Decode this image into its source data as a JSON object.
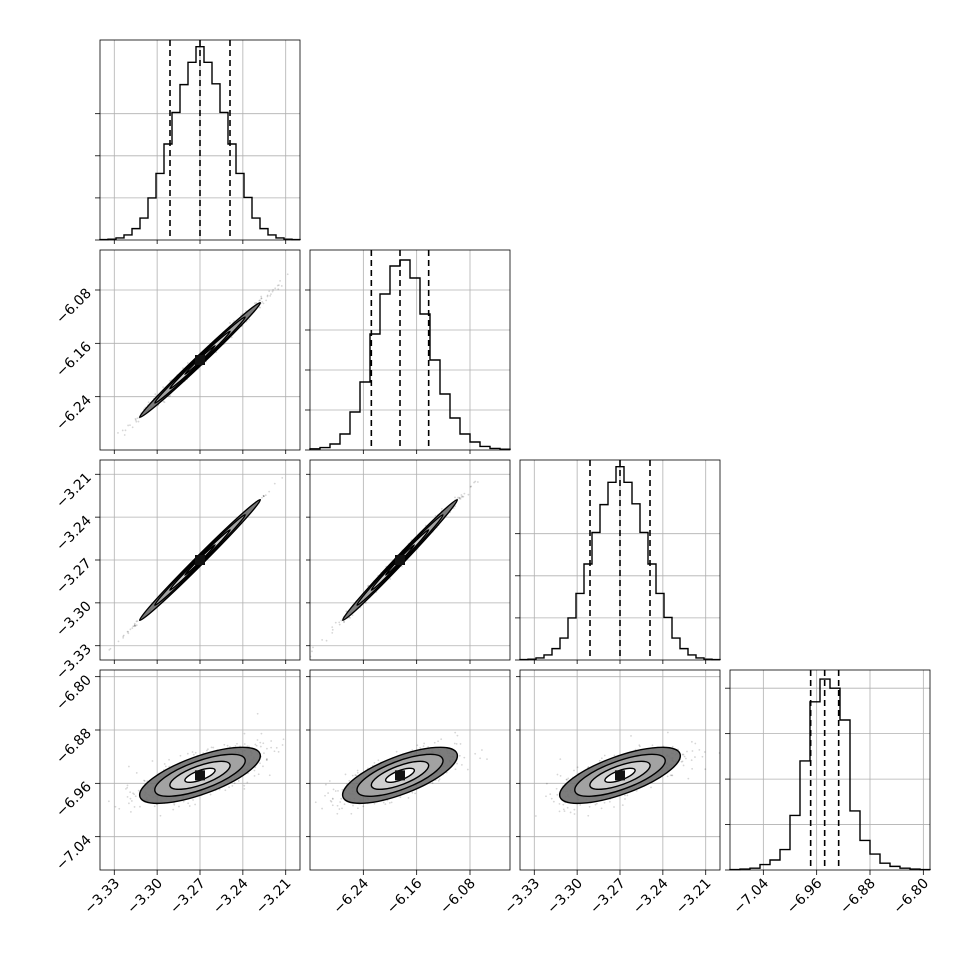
{
  "chart_data": {
    "type": "corner",
    "parameters": [
      {
        "ticks": [
          -3.33,
          -3.3,
          -3.27,
          -3.24,
          -3.21
        ],
        "tick_labels": [
          "−3.33",
          "−3.30",
          "−3.27",
          "−3.24",
          "−3.21"
        ],
        "range": [
          -3.34,
          -3.2
        ],
        "mean": -3.27,
        "sd": 0.0211,
        "quantiles": [
          -3.291,
          -3.27,
          -3.249
        ]
      },
      {
        "ticks": [
          -6.24,
          -6.16,
          -6.08
        ],
        "tick_labels": [
          "−6.24",
          "−6.16",
          "−6.08"
        ],
        "range": [
          -6.32,
          -6.02
        ],
        "mean": -6.185,
        "sd": 0.043,
        "quantiles": [
          -6.228,
          -6.185,
          -6.142
        ]
      },
      {
        "ticks": [
          -3.33,
          -3.3,
          -3.27,
          -3.24,
          -3.21
        ],
        "tick_labels": [
          "−3.33",
          "−3.30",
          "−3.27",
          "−3.24",
          "−3.21"
        ],
        "range": [
          -3.34,
          -3.2
        ],
        "mean": -3.27,
        "sd": 0.0211,
        "quantiles": [
          -3.291,
          -3.27,
          -3.249
        ]
      },
      {
        "ticks": [
          -6.8,
          -6.88,
          -6.96,
          -7.04
        ],
        "tick_labels": [
          "−6.80",
          "−6.88",
          "−6.96",
          "−7.04"
        ],
        "range": [
          -7.09,
          -6.79
        ],
        "mean": -6.948,
        "sd": 0.021,
        "quantiles": [
          -6.969,
          -6.948,
          -6.927
        ]
      }
    ],
    "histograms": [
      {
        "bins": [
          -3.34,
          -3.3344,
          -3.3288,
          -3.3232,
          -3.3176,
          -3.312,
          -3.3064,
          -3.3008,
          -3.2952,
          -3.2896,
          -3.284,
          -3.2784,
          -3.2728,
          -3.2672,
          -3.2616,
          -3.256,
          -3.2504,
          -3.2448,
          -3.2392,
          -3.2336,
          -3.228,
          -3.2224,
          -3.2168,
          -3.2112,
          -3.2056,
          -3.2
        ],
        "counts": [
          1,
          2,
          5,
          12,
          27,
          52,
          100,
          158,
          228,
          303,
          369,
          422,
          459,
          422,
          371,
          303,
          228,
          158,
          101,
          52,
          27,
          12,
          5,
          2,
          1
        ],
        "ylim": [
          0,
          475
        ],
        "yticks": [
          0,
          100,
          200,
          300
        ]
      },
      {
        "bins": [
          -6.32,
          -6.305,
          -6.29,
          -6.275,
          -6.26,
          -6.245,
          -6.23,
          -6.215,
          -6.2,
          -6.185,
          -6.17,
          -6.155,
          -6.14,
          -6.125,
          -6.11,
          -6.095,
          -6.08,
          -6.065,
          -6.05,
          -6.035,
          -6.02
        ],
        "counts": [
          3,
          6,
          15,
          40,
          95,
          170,
          290,
          390,
          460,
          475,
          430,
          340,
          225,
          140,
          80,
          40,
          20,
          9,
          4,
          2
        ],
        "ylim": [
          0,
          500
        ],
        "yticks": [
          0,
          100,
          200,
          300,
          400
        ]
      },
      {
        "bins": [
          -3.34,
          -3.3344,
          -3.3288,
          -3.3232,
          -3.3176,
          -3.312,
          -3.3064,
          -3.3008,
          -3.2952,
          -3.2896,
          -3.284,
          -3.2784,
          -3.2728,
          -3.2672,
          -3.2616,
          -3.256,
          -3.2504,
          -3.2448,
          -3.2392,
          -3.2336,
          -3.228,
          -3.2224,
          -3.2168,
          -3.2112,
          -3.2056,
          -3.2
        ],
        "counts": [
          1,
          2,
          5,
          12,
          27,
          52,
          100,
          158,
          228,
          303,
          369,
          422,
          459,
          422,
          371,
          303,
          228,
          158,
          101,
          52,
          27,
          12,
          5,
          2,
          1
        ],
        "ylim": [
          0,
          475
        ],
        "yticks": [
          0,
          100,
          200,
          300
        ]
      },
      {
        "bins": [
          -7.09,
          -7.075,
          -7.06,
          -7.045,
          -7.03,
          -7.015,
          -7.0,
          -6.985,
          -6.97,
          -6.955,
          -6.94,
          -6.925,
          -6.91,
          -6.895,
          -6.88,
          -6.865,
          -6.85,
          -6.835,
          -6.82,
          -6.805,
          -6.79
        ],
        "counts": [
          1,
          2,
          4,
          12,
          22,
          45,
          120,
          240,
          370,
          420,
          400,
          330,
          130,
          65,
          35,
          15,
          8,
          4,
          2,
          1
        ],
        "ylim": [
          0,
          440
        ],
        "yticks": [
          0,
          100,
          200,
          300,
          400
        ]
      }
    ],
    "pairs": [
      {
        "row": 1,
        "col": 0,
        "corr": 0.995
      },
      {
        "row": 2,
        "col": 0,
        "corr": 0.9995
      },
      {
        "row": 2,
        "col": 1,
        "corr": 0.995
      },
      {
        "row": 3,
        "col": 0,
        "corr": 0.7
      },
      {
        "row": 3,
        "col": 1,
        "corr": 0.7
      },
      {
        "row": 3,
        "col": 2,
        "corr": 0.7
      }
    ],
    "contour_levels": [
      0.118,
      0.393,
      0.675,
      0.865
    ],
    "grid": true,
    "colors": {
      "line": "#000000",
      "grid": "#b0b0b0",
      "points": "#000000"
    }
  }
}
